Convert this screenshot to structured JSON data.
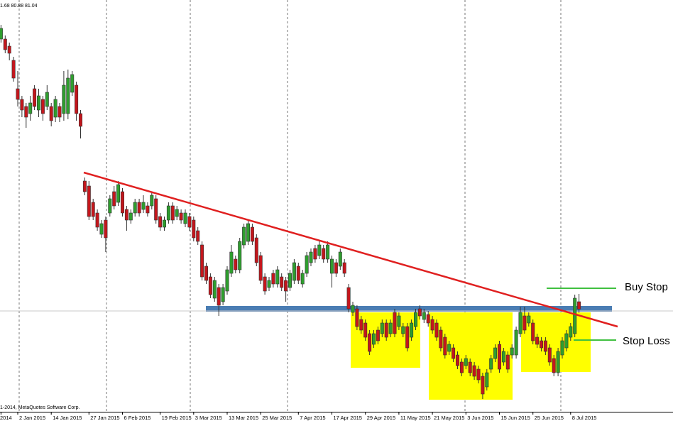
{
  "chart_data": {
    "type": "candlestick",
    "header": "1.68 80.88 81.04",
    "copyright": "1-2014, MetaQuotes Software Corp.",
    "annotations": [
      "Buy Stop",
      "Stop Loss"
    ],
    "up_color": "#2e9e2e",
    "down_color": "#c4161c",
    "ylim": [
      76.7,
      94.1
    ],
    "xticks": [
      {
        "value": 0,
        "label": "2014"
      },
      {
        "value": 4,
        "label": "2 Jan 2015"
      },
      {
        "value": 12,
        "label": "14 Jan 2015"
      },
      {
        "value": 21,
        "label": "27 Jan 2015"
      },
      {
        "value": 29,
        "label": "6 Feb 2015"
      },
      {
        "value": 38,
        "label": "19 Feb 2015"
      },
      {
        "value": 46,
        "label": "3 Mar 2015"
      },
      {
        "value": 54,
        "label": "13 Mar 2015"
      },
      {
        "value": 62,
        "label": "25 Mar 2015"
      },
      {
        "value": 71,
        "label": "7 Apr 2015"
      },
      {
        "value": 79,
        "label": "17 Apr 2015"
      },
      {
        "value": 87,
        "label": "29 Apr 2015"
      },
      {
        "value": 95,
        "label": "11 May 2015"
      },
      {
        "value": 103,
        "label": "21 May 2015"
      },
      {
        "value": 111,
        "label": "3 Jun 2015"
      },
      {
        "value": 119,
        "label": "15 Jun 2015"
      },
      {
        "value": 127,
        "label": "25 Jun 2015"
      },
      {
        "value": 136,
        "label": "8 Jul 2015"
      }
    ],
    "open": [
      92.45,
      92.45,
      92.15,
      91.55,
      90.35,
      89.9,
      89.6,
      89.3,
      90.35,
      89.45,
      89.9,
      89.6,
      89.6,
      89.15,
      89.6,
      89.3,
      89.3,
      90.2,
      90.5,
      89.3,
      86.45,
      86.24,
      85.55,
      85.1,
      84.2,
      84.8,
      85.1,
      86.0,
      85.55,
      86.0,
      85.25,
      84.8,
      85.1,
      85.55,
      85.25,
      85.4,
      85.4,
      85.7,
      84.95,
      84.5,
      84.8,
      85.4,
      84.95,
      85.1,
      84.65,
      84.95,
      84.8,
      84.35,
      83.75,
      82.85,
      82.4,
      81.5,
      81.95,
      81.35,
      81.8,
      82.55,
      83.15,
      82.7,
      83.75,
      83.9,
      84.5,
      84.05,
      83.3,
      82.4,
      81.95,
      82.55,
      82.1,
      82.4,
      82.25,
      81.95,
      82.25,
      82.85,
      82.1,
      82.55,
      83.0,
      83.6,
      83.3,
      83.6,
      83.15,
      82.55,
      83.0,
      82.85,
      83.0,
      81.95,
      80.9,
      81.05,
      80.6,
      80.45,
      80.0,
      79.55,
      80.15,
      80.0,
      80.45,
      80.0,
      80.9,
      80.3,
      80.0,
      80.3,
      79.85,
      80.3,
      81.05,
      80.6,
      80.81,
      80.6,
      80.45,
      80.15,
      79.85,
      79.25,
      79.4,
      79.1,
      78.8,
      78.65,
      78.8,
      78.65,
      78.5,
      78.2,
      77.75,
      78.5,
      78.95,
      79.55,
      78.8,
      79.1,
      79.1,
      79.1,
      80.0,
      80.75,
      80.45,
      80.45,
      79.85,
      79.7,
      79.7,
      79.4,
      78.95,
      78.35,
      79.1,
      79.4,
      79.85,
      80.0,
      81.35
    ],
    "high": [
      93.05,
      92.6,
      92.3,
      91.7,
      91.1,
      90.05,
      89.75,
      90.05,
      90.5,
      90.35,
      90.05,
      90.5,
      89.75,
      90.05,
      89.75,
      91.1,
      91.16,
      91.1,
      90.65,
      89.45,
      86.6,
      86.45,
      85.7,
      85.25,
      84.8,
      84.95,
      85.85,
      86.24,
      86.45,
      86.15,
      85.4,
      85.25,
      85.7,
      85.7,
      85.85,
      85.55,
      86.0,
      85.85,
      85.1,
      84.95,
      85.55,
      85.55,
      85.4,
      85.25,
      85.25,
      85.1,
      84.95,
      84.5,
      83.9,
      83.0,
      82.55,
      82.4,
      82.1,
      82.1,
      82.85,
      83.75,
      83.3,
      84.05,
      84.65,
      84.8,
      84.65,
      84.2,
      83.45,
      82.55,
      82.4,
      82.7,
      82.85,
      82.55,
      82.4,
      82.7,
      83.15,
      83.0,
      82.7,
      83.45,
      83.6,
      83.75,
      83.9,
      83.75,
      83.9,
      83.3,
      83.15,
      83.6,
      83.15,
      82.1,
      81.35,
      81.2,
      80.75,
      80.6,
      80.15,
      80.15,
      80.3,
      80.6,
      80.6,
      80.6,
      81.05,
      80.9,
      80.45,
      80.45,
      80.6,
      81.05,
      81.2,
      81.05,
      80.96,
      80.75,
      80.6,
      80.3,
      80.0,
      79.7,
      79.55,
      79.25,
      78.95,
      79.1,
      78.95,
      78.8,
      78.65,
      78.35,
      78.5,
      79.1,
      79.55,
      79.7,
      79.4,
      79.25,
      79.55,
      80.3,
      81.14,
      81.14,
      80.9,
      80.6,
      80.0,
      79.85,
      79.85,
      79.55,
      79.1,
      79.4,
      79.85,
      80.15,
      80.45,
      81.65,
      81.68
    ],
    "low": [
      92.3,
      91.85,
      91.55,
      90.65,
      89.6,
      89.15,
      88.7,
      89.0,
      89.45,
      89.15,
      89.0,
      89.45,
      88.76,
      88.94,
      88.94,
      89.0,
      89.06,
      90.05,
      89.0,
      88.25,
      85.85,
      84.8,
      84.8,
      84.35,
      84.05,
      83.45,
      84.95,
      85.25,
      85.4,
      84.95,
      84.35,
      84.65,
      84.95,
      84.95,
      85.1,
      84.95,
      85.25,
      84.65,
      84.35,
      84.35,
      84.65,
      84.65,
      84.8,
      84.65,
      84.5,
      84.35,
      83.9,
      83.75,
      82.25,
      82.1,
      81.5,
      81.35,
      80.75,
      81.2,
      81.65,
      82.4,
      82.55,
      82.55,
      83.6,
      83.75,
      83.75,
      82.85,
      82.1,
      81.65,
      81.8,
      81.95,
      81.95,
      81.8,
      81.35,
      81.8,
      82.1,
      82.1,
      81.95,
      82.4,
      82.85,
      83.0,
      83.15,
      83.0,
      83.0,
      81.95,
      82.4,
      82.7,
      82.4,
      80.9,
      80.75,
      80.15,
      80.0,
      79.7,
      79.1,
      79.4,
      79.55,
      79.85,
      79.7,
      79.85,
      79.85,
      80.15,
      79.85,
      79.25,
      79.7,
      80.15,
      80.6,
      80.45,
      80.3,
      80.0,
      79.7,
      79.25,
      78.95,
      79.1,
      78.8,
      78.5,
      78.2,
      78.5,
      78.2,
      78.05,
      77.9,
      77.24,
      77.6,
      78.35,
      78.8,
      78.35,
      78.65,
      78.35,
      78.95,
      78.95,
      79.85,
      80.0,
      80.3,
      79.55,
      79.4,
      79.25,
      79.1,
      78.65,
      78.2,
      78.2,
      78.95,
      79.25,
      79.7,
      79.85,
      80.88
    ],
    "close": [
      92.9,
      92.0,
      91.85,
      90.8,
      89.9,
      89.45,
      89.15,
      89.75,
      89.6,
      90.05,
      89.3,
      90.2,
      89.0,
      89.9,
      89.15,
      90.5,
      90.8,
      90.95,
      89.3,
      88.76,
      86.0,
      84.95,
      84.95,
      84.5,
      84.65,
      84.05,
      85.7,
      85.4,
      86.3,
      85.1,
      84.8,
      85.1,
      85.55,
      85.1,
      85.55,
      85.1,
      85.85,
      84.8,
      84.5,
      84.8,
      85.4,
      84.8,
      85.25,
      84.8,
      85.1,
      84.5,
      84.05,
      83.9,
      82.4,
      82.25,
      81.65,
      82.25,
      81.2,
      81.95,
      82.7,
      83.45,
      82.7,
      83.9,
      84.5,
      84.65,
      83.9,
      83.0,
      82.25,
      81.8,
      82.25,
      82.1,
      82.7,
      81.95,
      81.8,
      82.55,
      83.0,
      82.25,
      82.55,
      83.3,
      83.45,
      83.15,
      83.75,
      83.15,
      83.75,
      83.15,
      82.55,
      83.45,
      82.55,
      81.05,
      81.2,
      80.3,
      80.15,
      79.85,
      79.25,
      80.0,
      79.7,
      80.45,
      79.85,
      80.45,
      80.0,
      80.75,
      80.3,
      79.4,
      80.45,
      80.9,
      80.75,
      80.9,
      80.45,
      80.15,
      79.85,
      79.4,
      79.1,
      79.55,
      78.95,
      78.65,
      78.35,
      78.95,
      78.35,
      78.2,
      78.05,
      77.45,
      78.35,
      78.95,
      79.4,
      78.5,
      79.25,
      78.5,
      79.4,
      80.15,
      80.9,
      80.15,
      80.75,
      79.7,
      79.55,
      79.4,
      79.25,
      78.8,
      78.35,
      79.25,
      79.7,
      80.0,
      80.3,
      81.5,
      81.04
    ]
  }
}
